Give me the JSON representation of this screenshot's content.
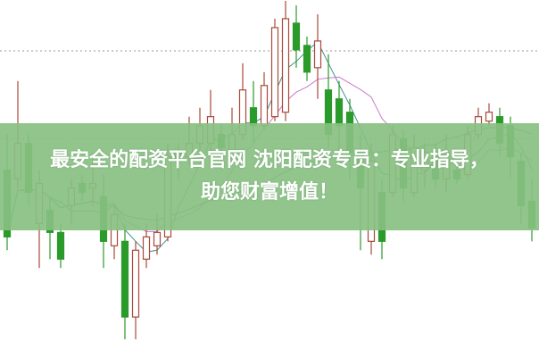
{
  "overlay": {
    "line1": "最安全的配资平台官网 沈阳配资专员：专业指导，",
    "line2": "助您财富增值！",
    "background": "#88c082"
  },
  "chart_data": {
    "type": "candlestick",
    "grid": true,
    "ylim": [
      0,
      400
    ],
    "colors": {
      "up": "#a84a3a",
      "down": "#2a9a2a",
      "ma_short": "#3f8f8f",
      "ma_mid": "#cc77cc",
      "ma_long": "#2f7a4a",
      "grid": "#999999"
    },
    "moving_averages": [
      5,
      10,
      30
    ],
    "candles": [
      {
        "o": 210,
        "c": 135,
        "h": 250,
        "l": 120
      },
      {
        "o": 200,
        "c": 240,
        "h": 310,
        "l": 190
      },
      {
        "o": 240,
        "c": 185,
        "h": 250,
        "l": 170
      },
      {
        "o": 150,
        "c": 195,
        "h": 210,
        "l": 100
      },
      {
        "o": 165,
        "c": 140,
        "h": 180,
        "l": 110
      },
      {
        "o": 140,
        "c": 110,
        "h": 150,
        "l": 100
      },
      {
        "o": 170,
        "c": 190,
        "h": 200,
        "l": 150
      },
      {
        "o": 195,
        "c": 185,
        "h": 205,
        "l": 175
      },
      {
        "o": 190,
        "c": 195,
        "h": 230,
        "l": 170
      },
      {
        "o": 180,
        "c": 130,
        "h": 205,
        "l": 100
      },
      {
        "o": 125,
        "c": 160,
        "h": 170,
        "l": 110
      },
      {
        "o": 130,
        "c": 45,
        "h": 150,
        "l": 20
      },
      {
        "o": 45,
        "c": 120,
        "h": 130,
        "l": 20
      },
      {
        "o": 110,
        "c": 135,
        "h": 150,
        "l": 100
      },
      {
        "o": 125,
        "c": 140,
        "h": 160,
        "l": 115
      },
      {
        "o": 135,
        "c": 225,
        "h": 240,
        "l": 130
      },
      {
        "o": 230,
        "c": 220,
        "h": 240,
        "l": 200
      },
      {
        "o": 225,
        "c": 240,
        "h": 270,
        "l": 215
      },
      {
        "o": 240,
        "c": 260,
        "h": 280,
        "l": 230
      },
      {
        "o": 240,
        "c": 270,
        "h": 300,
        "l": 225
      },
      {
        "o": 250,
        "c": 235,
        "h": 260,
        "l": 210
      },
      {
        "o": 225,
        "c": 250,
        "h": 280,
        "l": 215
      },
      {
        "o": 250,
        "c": 300,
        "h": 330,
        "l": 245
      },
      {
        "o": 280,
        "c": 260,
        "h": 310,
        "l": 240
      },
      {
        "o": 260,
        "c": 305,
        "h": 320,
        "l": 255
      },
      {
        "o": 270,
        "c": 370,
        "h": 380,
        "l": 265
      },
      {
        "o": 275,
        "c": 380,
        "h": 400,
        "l": 265
      },
      {
        "o": 375,
        "c": 345,
        "h": 395,
        "l": 325
      },
      {
        "o": 350,
        "c": 320,
        "h": 360,
        "l": 310
      },
      {
        "o": 325,
        "c": 355,
        "h": 385,
        "l": 290
      },
      {
        "o": 300,
        "c": 250,
        "h": 340,
        "l": 235
      },
      {
        "o": 290,
        "c": 260,
        "h": 310,
        "l": 230
      },
      {
        "o": 275,
        "c": 230,
        "h": 290,
        "l": 200
      },
      {
        "o": 230,
        "c": 190,
        "h": 250,
        "l": 120
      },
      {
        "o": 130,
        "c": 220,
        "h": 240,
        "l": 115
      },
      {
        "o": 185,
        "c": 130,
        "h": 200,
        "l": 110
      },
      {
        "o": 185,
        "c": 250,
        "h": 260,
        "l": 180
      },
      {
        "o": 245,
        "c": 190,
        "h": 255,
        "l": 175
      },
      {
        "o": 185,
        "c": 235,
        "h": 250,
        "l": 180
      },
      {
        "o": 210,
        "c": 230,
        "h": 240,
        "l": 190
      },
      {
        "o": 230,
        "c": 200,
        "h": 240,
        "l": 190
      },
      {
        "o": 200,
        "c": 230,
        "h": 250,
        "l": 185
      },
      {
        "o": 210,
        "c": 200,
        "h": 220,
        "l": 195
      },
      {
        "o": 205,
        "c": 250,
        "h": 260,
        "l": 200
      },
      {
        "o": 250,
        "c": 270,
        "h": 280,
        "l": 245
      },
      {
        "o": 265,
        "c": 275,
        "h": 285,
        "l": 260
      },
      {
        "o": 270,
        "c": 240,
        "h": 280,
        "l": 225
      },
      {
        "o": 260,
        "c": 225,
        "h": 270,
        "l": 200
      },
      {
        "o": 220,
        "c": 170,
        "h": 230,
        "l": 150
      },
      {
        "o": 175,
        "c": 145,
        "h": 200,
        "l": 130
      }
    ]
  }
}
